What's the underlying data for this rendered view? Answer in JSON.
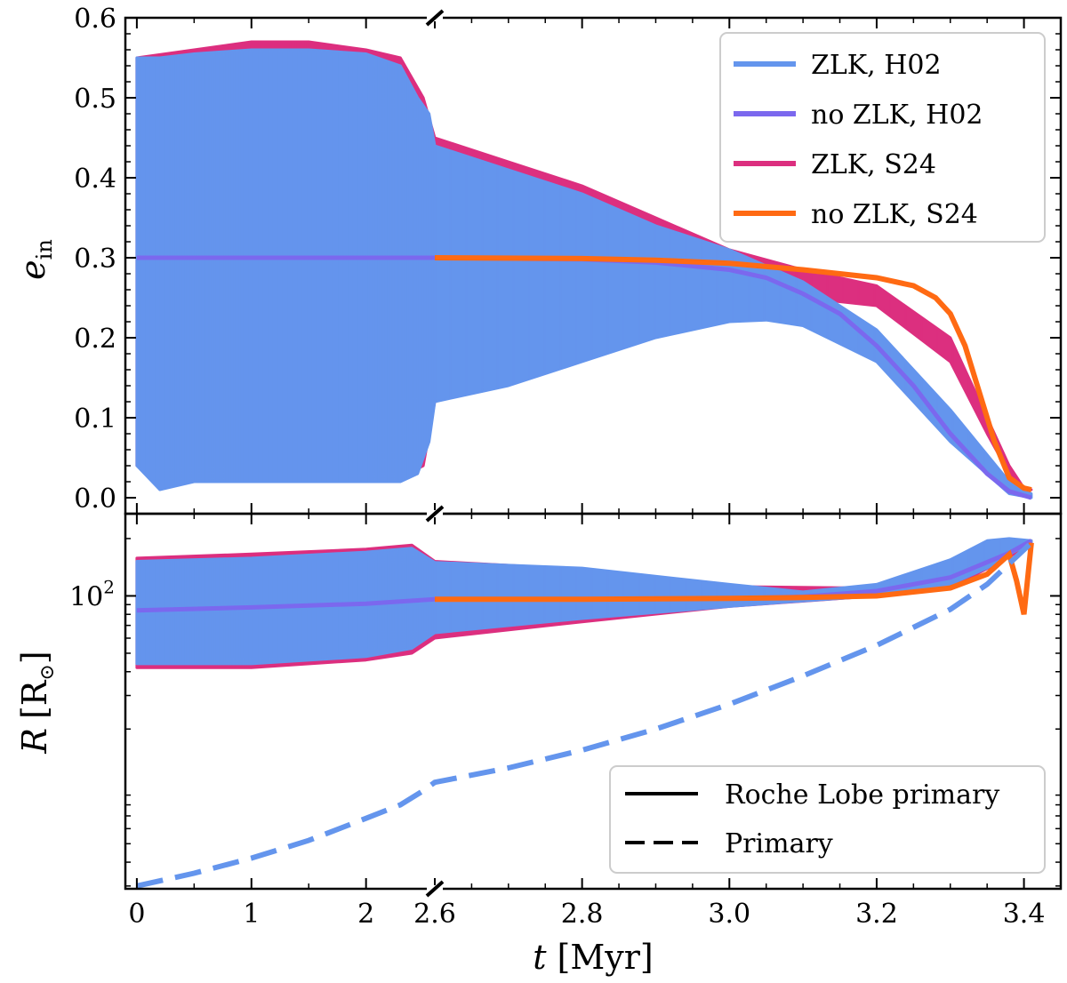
{
  "chart_data": [
    {
      "type": "line",
      "panel": "top",
      "ylabel": "e",
      "ylabel_sub": "in",
      "ylim": [
        -0.02,
        0.6
      ],
      "yticks": [
        "0.0",
        "0.1",
        "0.2",
        "0.3",
        "0.4",
        "0.5",
        "0.6"
      ],
      "x_axis": {
        "segment_1": {
          "range": [
            0,
            2.6
          ],
          "ticks": [
            "0",
            "1",
            "2"
          ]
        },
        "segment_2": {
          "range": [
            2.6,
            3.42
          ],
          "ticks": [
            "2.6",
            "2.8",
            "3.0",
            "3.2",
            "3.4"
          ]
        }
      },
      "colors": {
        "zlk_h02": "#6495ED",
        "nozlk_h02": "#7B68EE",
        "zlk_s24": "#DC2F7F",
        "nozlk_s24": "#FF6A13"
      },
      "series": [
        {
          "name": "ZLK, H02",
          "kind": "oscillating band",
          "envelope_t": [
            0,
            0.2,
            0.5,
            1.0,
            1.5,
            2.0,
            2.3,
            2.45,
            2.55,
            2.6,
            2.7,
            2.8,
            2.9,
            3.0,
            3.05,
            3.1,
            3.2,
            3.3,
            3.38,
            3.41
          ],
          "envelope_max": [
            0.55,
            0.55,
            0.555,
            0.56,
            0.56,
            0.555,
            0.54,
            0.5,
            0.48,
            0.44,
            0.41,
            0.38,
            0.34,
            0.31,
            0.29,
            0.27,
            0.21,
            0.11,
            0.02,
            0.005
          ],
          "envelope_min": [
            0.04,
            0.01,
            0.02,
            0.02,
            0.02,
            0.02,
            0.02,
            0.03,
            0.07,
            0.12,
            0.14,
            0.17,
            0.2,
            0.22,
            0.222,
            0.215,
            0.17,
            0.07,
            0.005,
            0.0
          ]
        },
        {
          "name": "no ZLK, H02",
          "t": [
            0,
            1,
            2,
            2.6,
            2.8,
            2.9,
            3.0,
            3.05,
            3.1,
            3.15,
            3.2,
            3.25,
            3.3,
            3.35,
            3.38,
            3.41
          ],
          "e": [
            0.3,
            0.3,
            0.3,
            0.3,
            0.298,
            0.294,
            0.285,
            0.275,
            0.255,
            0.23,
            0.19,
            0.14,
            0.08,
            0.03,
            0.008,
            0.0
          ]
        },
        {
          "name": "ZLK, S24",
          "kind": "oscillating band",
          "envelope_t": [
            0,
            0.5,
            1.0,
            1.5,
            2.0,
            2.3,
            2.5,
            2.6,
            2.7,
            2.8,
            2.9,
            3.0,
            3.1,
            3.2,
            3.3,
            3.35,
            3.38,
            3.4,
            3.41
          ],
          "envelope_max": [
            0.55,
            0.56,
            0.57,
            0.57,
            0.56,
            0.55,
            0.5,
            0.45,
            0.42,
            0.39,
            0.35,
            0.31,
            0.285,
            0.265,
            0.2,
            0.1,
            0.04,
            0.012,
            0.01
          ],
          "envelope_min": [
            0.04,
            0.025,
            0.02,
            0.02,
            0.02,
            0.025,
            0.04,
            0.12,
            0.15,
            0.19,
            0.23,
            0.26,
            0.25,
            0.24,
            0.17,
            0.08,
            0.03,
            0.012,
            0.01
          ]
        },
        {
          "name": "no ZLK, S24",
          "t": [
            2.6,
            2.8,
            2.9,
            3.0,
            3.1,
            3.15,
            3.2,
            3.25,
            3.28,
            3.3,
            3.32,
            3.34,
            3.36,
            3.38,
            3.4,
            3.41
          ],
          "e": [
            0.3,
            0.299,
            0.297,
            0.293,
            0.285,
            0.28,
            0.275,
            0.265,
            0.25,
            0.23,
            0.19,
            0.13,
            0.07,
            0.025,
            0.012,
            0.01
          ]
        }
      ],
      "legend": {
        "placement": "top-right",
        "entries": [
          {
            "label": "ZLK, H02",
            "color": "#6495ED"
          },
          {
            "label": "no ZLK, H02",
            "color": "#7B68EE"
          },
          {
            "label": "ZLK, S24",
            "color": "#DC2F7F"
          },
          {
            "label": "no ZLK, S24",
            "color": "#FF6A13"
          }
        ]
      }
    },
    {
      "type": "line",
      "panel": "bottom",
      "ylabel": "R",
      "ylabel_unit": "[R",
      "ylabel_unit_sub": "⊙",
      "ylabel_unit_close": "]",
      "yscale": "log",
      "ylim": [
        2.9,
        270
      ],
      "ytick_major": {
        "base": "10",
        "exp": "2",
        "value": 100
      },
      "yticks_minor": [
        3,
        4,
        5,
        6,
        7,
        8,
        9,
        20,
        30,
        40,
        50,
        60,
        70,
        80,
        90,
        200
      ],
      "xlabel": "t",
      "xlabel_unit": "[Myr]",
      "series": [
        {
          "name": "ZLK, H02 (Roche Lobe primary)",
          "kind": "oscillating band",
          "envelope_t": [
            0,
            1,
            2,
            2.4,
            2.6,
            2.8,
            3.0,
            3.1,
            3.2,
            3.3,
            3.35,
            3.38,
            3.41
          ],
          "envelope_max": [
            152,
            158,
            170,
            178,
            150,
            140,
            115,
            105,
            115,
            155,
            195,
            200,
            195
          ],
          "envelope_min": [
            44,
            44,
            48,
            53,
            64,
            76,
            88,
            94,
            100,
            115,
            140,
            165,
            190
          ]
        },
        {
          "name": "no ZLK, H02 (Roche Lobe primary)",
          "t": [
            0,
            1,
            2,
            2.6,
            2.8,
            3.0,
            3.1,
            3.2,
            3.3,
            3.38,
            3.41
          ],
          "R": [
            84,
            87,
            91,
            96,
            96,
            97,
            99,
            106,
            125,
            168,
            195
          ]
        },
        {
          "name": "ZLK, S24 (Roche Lobe primary)",
          "kind": "oscillating band",
          "envelope_t": [
            0,
            1,
            2,
            2.4,
            2.6,
            2.8,
            3.0,
            3.2,
            3.3,
            3.38,
            3.41
          ],
          "envelope_max": [
            158,
            166,
            176,
            185,
            152,
            138,
            112,
            110,
            125,
            175,
            195
          ],
          "envelope_min": [
            42,
            42,
            46,
            50,
            60,
            73,
            88,
            100,
            110,
            160,
            190
          ]
        },
        {
          "name": "no ZLK, S24 (Roche Lobe primary)",
          "t": [
            2.6,
            2.8,
            3.0,
            3.1,
            3.2,
            3.3,
            3.35,
            3.38,
            3.39,
            3.4,
            3.41
          ],
          "R": [
            96,
            96,
            97,
            98,
            100,
            110,
            130,
            165,
            120,
            80,
            190
          ]
        },
        {
          "name": "Primary",
          "style": "dashed",
          "t": [
            0,
            0.5,
            1.0,
            1.5,
            2.0,
            2.3,
            2.5,
            2.6,
            2.7,
            2.8,
            2.9,
            3.0,
            3.1,
            3.2,
            3.3,
            3.35,
            3.41
          ],
          "R": [
            3.0,
            3.5,
            4.2,
            5.2,
            6.8,
            8.0,
            9.5,
            10.5,
            12.5,
            15.5,
            20.0,
            27.0,
            38.0,
            55.0,
            85.0,
            115.0,
            190.0
          ]
        }
      ],
      "legend": {
        "placement": "bottom-right",
        "entries": [
          {
            "label": "Roche Lobe primary",
            "style": "solid"
          },
          {
            "label": "Primary",
            "style": "dashed"
          }
        ]
      }
    }
  ]
}
